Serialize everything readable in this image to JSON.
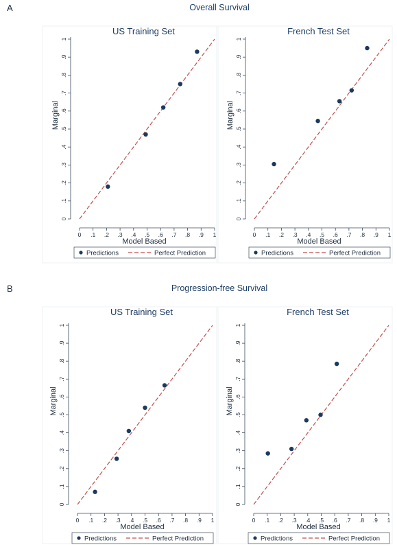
{
  "figure": {
    "panels": [
      {
        "label": "A",
        "title": "Overall Survival"
      },
      {
        "label": "B",
        "title": "Progression-free Survival"
      }
    ],
    "legend": {
      "predictions": "Predictions",
      "perfect": "Perfect Prediction"
    },
    "colors": {
      "points": "#1b3a5c",
      "reference_line": "#c0504d",
      "frame": "#3b4a5a",
      "title": "#1f3f66"
    }
  },
  "chart_data": [
    {
      "type": "scatter",
      "panel": "A",
      "title": "US Training Set",
      "xlabel": "Model Based",
      "ylabel": "Marginal",
      "xlim": [
        0,
        1
      ],
      "ylim": [
        0,
        1
      ],
      "ticks": [
        "0",
        ".1",
        ".2",
        ".3",
        ".4",
        ".5",
        ".6",
        ".7",
        ".8",
        ".9",
        "1"
      ],
      "series": [
        {
          "name": "Predictions",
          "x": [
            0.21,
            0.49,
            0.62,
            0.745,
            0.87
          ],
          "y": [
            0.18,
            0.47,
            0.62,
            0.75,
            0.93
          ]
        },
        {
          "name": "Perfect Prediction",
          "x": [
            0,
            1
          ],
          "y": [
            0,
            1
          ]
        }
      ]
    },
    {
      "type": "scatter",
      "panel": "A",
      "title": "French Test Set",
      "xlabel": "Model Based",
      "ylabel": "Marginal",
      "xlim": [
        0,
        1
      ],
      "ylim": [
        0,
        1
      ],
      "ticks": [
        "0",
        ".1",
        ".2",
        ".3",
        ".4",
        ".5",
        ".6",
        ".7",
        ".8",
        ".9",
        "1"
      ],
      "series": [
        {
          "name": "Predictions",
          "x": [
            0.145,
            0.47,
            0.63,
            0.72,
            0.835
          ],
          "y": [
            0.305,
            0.545,
            0.655,
            0.715,
            0.95
          ]
        },
        {
          "name": "Perfect Prediction",
          "x": [
            0,
            1
          ],
          "y": [
            0,
            1
          ]
        }
      ]
    },
    {
      "type": "scatter",
      "panel": "B",
      "title": "US Training Set",
      "xlabel": "Model Based",
      "ylabel": "Marginal",
      "xlim": [
        0,
        1
      ],
      "ylim": [
        0,
        1
      ],
      "ticks": [
        "0",
        ".1",
        ".2",
        ".3",
        ".4",
        ".5",
        ".6",
        ".7",
        ".8",
        ".9",
        "1"
      ],
      "series": [
        {
          "name": "Predictions",
          "x": [
            0.13,
            0.29,
            0.38,
            0.5,
            0.645
          ],
          "y": [
            0.07,
            0.255,
            0.41,
            0.54,
            0.665
          ]
        },
        {
          "name": "Perfect Prediction",
          "x": [
            0,
            1
          ],
          "y": [
            0,
            1
          ]
        }
      ]
    },
    {
      "type": "scatter",
      "panel": "B",
      "title": "French Test Set",
      "xlabel": "Model Based",
      "ylabel": "Marginal",
      "xlim": [
        0,
        1
      ],
      "ylim": [
        0,
        1
      ],
      "ticks": [
        "0",
        ".1",
        ".2",
        ".3",
        ".4",
        ".5",
        ".6",
        ".7",
        ".8",
        ".9",
        "1"
      ],
      "series": [
        {
          "name": "Predictions",
          "x": [
            0.105,
            0.28,
            0.39,
            0.495,
            0.615
          ],
          "y": [
            0.285,
            0.31,
            0.47,
            0.5,
            0.785
          ]
        },
        {
          "name": "Perfect Prediction",
          "x": [
            0,
            1
          ],
          "y": [
            0,
            1
          ]
        }
      ]
    }
  ]
}
